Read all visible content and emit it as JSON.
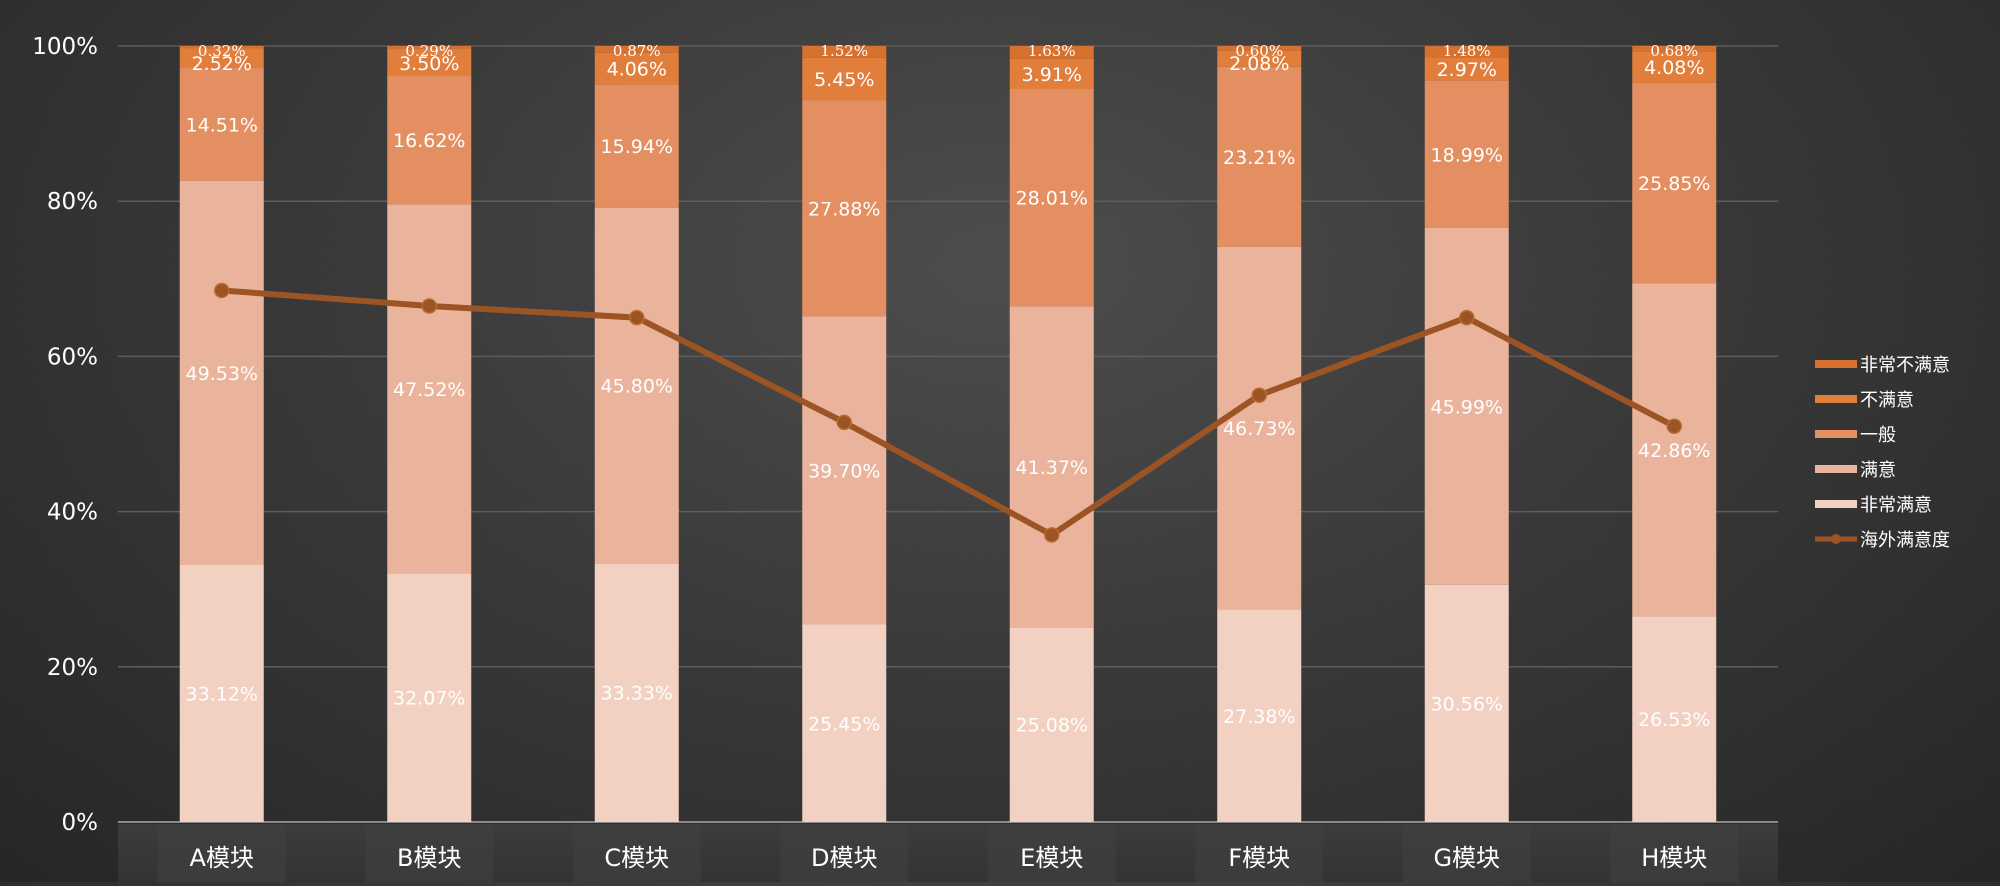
{
  "chart_data": {
    "type": "bar",
    "stacked": true,
    "categories": [
      "A模块",
      "B模块",
      "C模块",
      "D模块",
      "E模块",
      "F模块",
      "G模块",
      "H模块"
    ],
    "yticks": [
      "0%",
      "20%",
      "40%",
      "60%",
      "80%",
      "100%"
    ],
    "ylim": [
      0,
      100
    ],
    "grid": true,
    "legend_position": "right",
    "series": [
      {
        "name": "非常满意",
        "color": "#f2d0c2",
        "values": [
          33.12,
          32.07,
          33.33,
          25.45,
          25.08,
          27.38,
          30.56,
          26.53
        ],
        "labels": [
          "33.12%",
          "32.07%",
          "33.33%",
          "25.45%",
          "25.08%",
          "27.38%",
          "30.56%",
          "26.53%"
        ]
      },
      {
        "name": "满意",
        "color": "#eab49c",
        "values": [
          49.53,
          47.52,
          45.8,
          39.7,
          41.37,
          46.73,
          45.99,
          42.86
        ],
        "labels": [
          "49.53%",
          "47.52%",
          "45.80%",
          "39.70%",
          "41.37%",
          "46.73%",
          "45.99%",
          "42.86%"
        ]
      },
      {
        "name": "一般",
        "color": "#e48f62",
        "values": [
          14.51,
          16.62,
          15.94,
          27.88,
          28.01,
          23.21,
          18.99,
          25.85
        ],
        "labels": [
          "14.51%",
          "16.62%",
          "15.94%",
          "27.88%",
          "28.01%",
          "23.21%",
          "18.99%",
          "25.85%"
        ]
      },
      {
        "name": "不满意",
        "color": "#e27e3c",
        "values": [
          2.52,
          3.5,
          4.06,
          5.45,
          3.91,
          2.08,
          2.97,
          4.08
        ],
        "labels": [
          "2.52%",
          "3.50%",
          "4.06%",
          "5.45%",
          "3.91%",
          "2.08%",
          "2.97%",
          "4.08%"
        ]
      },
      {
        "name": "非常不满意",
        "color": "#d9712e",
        "values": [
          0.32,
          0.29,
          0.87,
          1.52,
          1.63,
          0.6,
          1.48,
          0.68
        ],
        "labels": [
          "0.32%",
          "0.29%",
          "0.87%",
          "1.52%",
          "1.63%",
          "0.60%",
          "1.48%",
          "0.68%"
        ]
      }
    ],
    "line_series": {
      "name": "海外满意度",
      "color": "#9c5424",
      "values": [
        68.5,
        66.5,
        65.0,
        51.5,
        37.0,
        55.0,
        65.0,
        51.0
      ]
    }
  }
}
